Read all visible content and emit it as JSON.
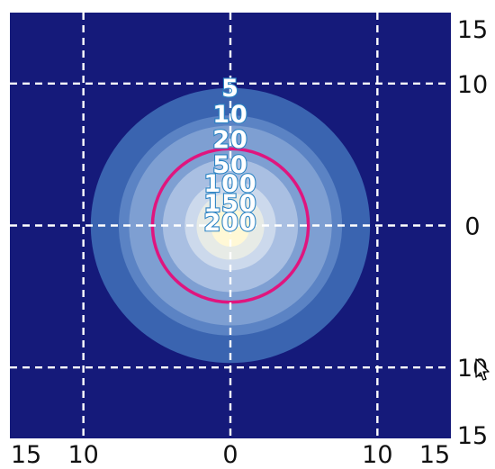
{
  "chart_data": {
    "type": "heatmap",
    "title": "",
    "xlabel": "",
    "ylabel": "",
    "xlim": [
      -15,
      15
    ],
    "ylim": [
      -15,
      15
    ],
    "grid": true,
    "grid_style": "dashed-white",
    "x_tick_labels": [
      "15",
      "10",
      "0",
      "10",
      "15"
    ],
    "x_tick_values": [
      -15,
      -10,
      0,
      10,
      15
    ],
    "y_tick_labels": [
      "15",
      "10",
      "0",
      "10",
      "15"
    ],
    "y_tick_values": [
      15,
      10,
      0,
      -10,
      -15
    ],
    "center": [
      0,
      0
    ],
    "contour_levels": [
      {
        "label": "5",
        "radius": 9.5,
        "color": "#3a64b0"
      },
      {
        "label": "10",
        "radius": 7.6,
        "color": "#5b83c4"
      },
      {
        "label": "20",
        "radius": 6.9,
        "color": "#7e9fd2"
      },
      {
        "label": "50",
        "radius": 4.6,
        "color": "#a9bfe2"
      },
      {
        "label": "100",
        "radius": 3.1,
        "color": "#ccd9ec"
      },
      {
        "label": "150",
        "radius": 2.3,
        "color": "#e7ebe6"
      },
      {
        "label": "200",
        "radius": 1.3,
        "color": "#fff8d6"
      }
    ],
    "highlight_contour": {
      "radius": 5.3,
      "color": "#e0157e"
    },
    "background_color": "#151a7a"
  }
}
